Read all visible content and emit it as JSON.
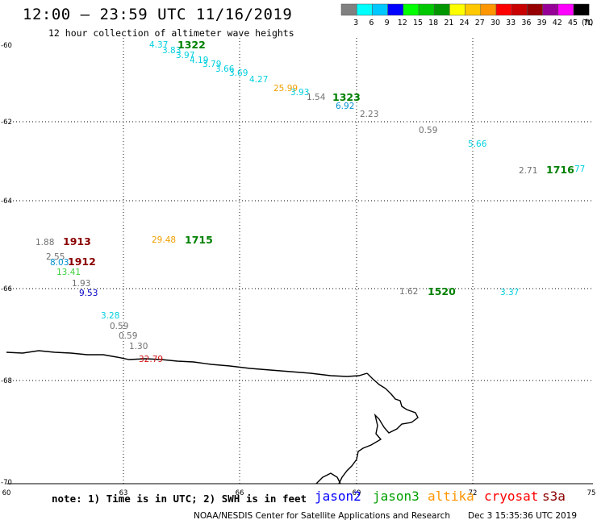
{
  "header": {
    "title": "12:00 – 23:59 UTC 11/16/2019",
    "subtitle": "12 hour collection of altimeter wave heights"
  },
  "scale": {
    "labels": [
      "3",
      "6",
      "9",
      "12",
      "15",
      "18",
      "21",
      "24",
      "27",
      "30",
      "33",
      "36",
      "39",
      "42",
      "45",
      "70"
    ],
    "unit": "(ft)",
    "colors": [
      "#808080",
      "#00ffff",
      "#00c8ff",
      "#0000ff",
      "#00ff00",
      "#00c800",
      "#009600",
      "#ffff00",
      "#ffc800",
      "#ff9600",
      "#ff0000",
      "#c80000",
      "#960000",
      "#960096",
      "#ff00ff",
      "#000000"
    ]
  },
  "axes": {
    "lat_labels": [
      "-60",
      "-62",
      "-64",
      "-66",
      "-68",
      "-70"
    ],
    "lon_labels": [
      "60",
      "63",
      "66",
      "69",
      "72",
      "75"
    ]
  },
  "wave_heights": [
    {
      "text": "4.37",
      "color": "#00d0e0"
    },
    {
      "text": "3.83",
      "color": "#00d0e0"
    },
    {
      "text": "3.97",
      "color": "#00d0e0"
    },
    {
      "text": "4.19",
      "color": "#00d0e0"
    },
    {
      "text": "3.79",
      "color": "#00d0e0"
    },
    {
      "text": "3.66",
      "color": "#00d0e0"
    },
    {
      "text": "3.69",
      "color": "#00d0e0"
    },
    {
      "text": "4.27",
      "color": "#00d0e0"
    },
    {
      "text": "25.99",
      "color": "#f0a000"
    },
    {
      "text": "3.93",
      "color": "#00d0e0"
    },
    {
      "text": "1.54",
      "color": "#707070"
    },
    {
      "text": "6.92",
      "color": "#0090d0"
    },
    {
      "text": "2.23",
      "color": "#707070"
    },
    {
      "text": "0.59",
      "color": "#707070"
    },
    {
      "text": "5.66",
      "color": "#00d0e0"
    },
    {
      "text": "2.71",
      "color": "#707070"
    },
    {
      "text": "77",
      "color": "#00d0e0"
    },
    {
      "text": "1.88",
      "color": "#707070"
    },
    {
      "text": "2.55",
      "color": "#707070"
    },
    {
      "text": "8.03",
      "color": "#0090d0"
    },
    {
      "text": "13.41",
      "color": "#40d040"
    },
    {
      "text": "1.93",
      "color": "#707070"
    },
    {
      "text": "9.53",
      "color": "#0000c8"
    },
    {
      "text": "29.48",
      "color": "#f0a000"
    },
    {
      "text": "1.62",
      "color": "#707070"
    },
    {
      "text": "3.37",
      "color": "#00d0e0"
    },
    {
      "text": "3.28",
      "color": "#00d0e0"
    },
    {
      "text": "0.59",
      "color": "#707070"
    },
    {
      "text": "0.59",
      "color": "#707070"
    },
    {
      "text": "1.30",
      "color": "#707070"
    },
    {
      "text": "32.79",
      "color": "#d01010"
    }
  ],
  "pass_times": [
    {
      "text": "1322",
      "color": "#008000"
    },
    {
      "text": "1323",
      "color": "#008000"
    },
    {
      "text": "1716",
      "color": "#008000"
    },
    {
      "text": "1913",
      "color": "#8b0000"
    },
    {
      "text": "1912",
      "color": "#8b0000"
    },
    {
      "text": "1715",
      "color": "#008000"
    },
    {
      "text": "1520",
      "color": "#008000"
    }
  ],
  "footer": {
    "note": "note: 1) Time is in UTC; 2) SWH is in feet",
    "satellites": [
      {
        "name": "jason2",
        "color": "#0000ff"
      },
      {
        "name": "jason3",
        "color": "#00a000"
      },
      {
        "name": "altika",
        "color": "#ff9600"
      },
      {
        "name": "cryosat",
        "color": "#ff0000"
      },
      {
        "name": "s3a",
        "color": "#8b0000"
      }
    ],
    "credit": "NOAA/NESDIS Center for Satellite Applications and Research",
    "timestamp": "Dec  3 15:35:36 UTC 2019"
  }
}
